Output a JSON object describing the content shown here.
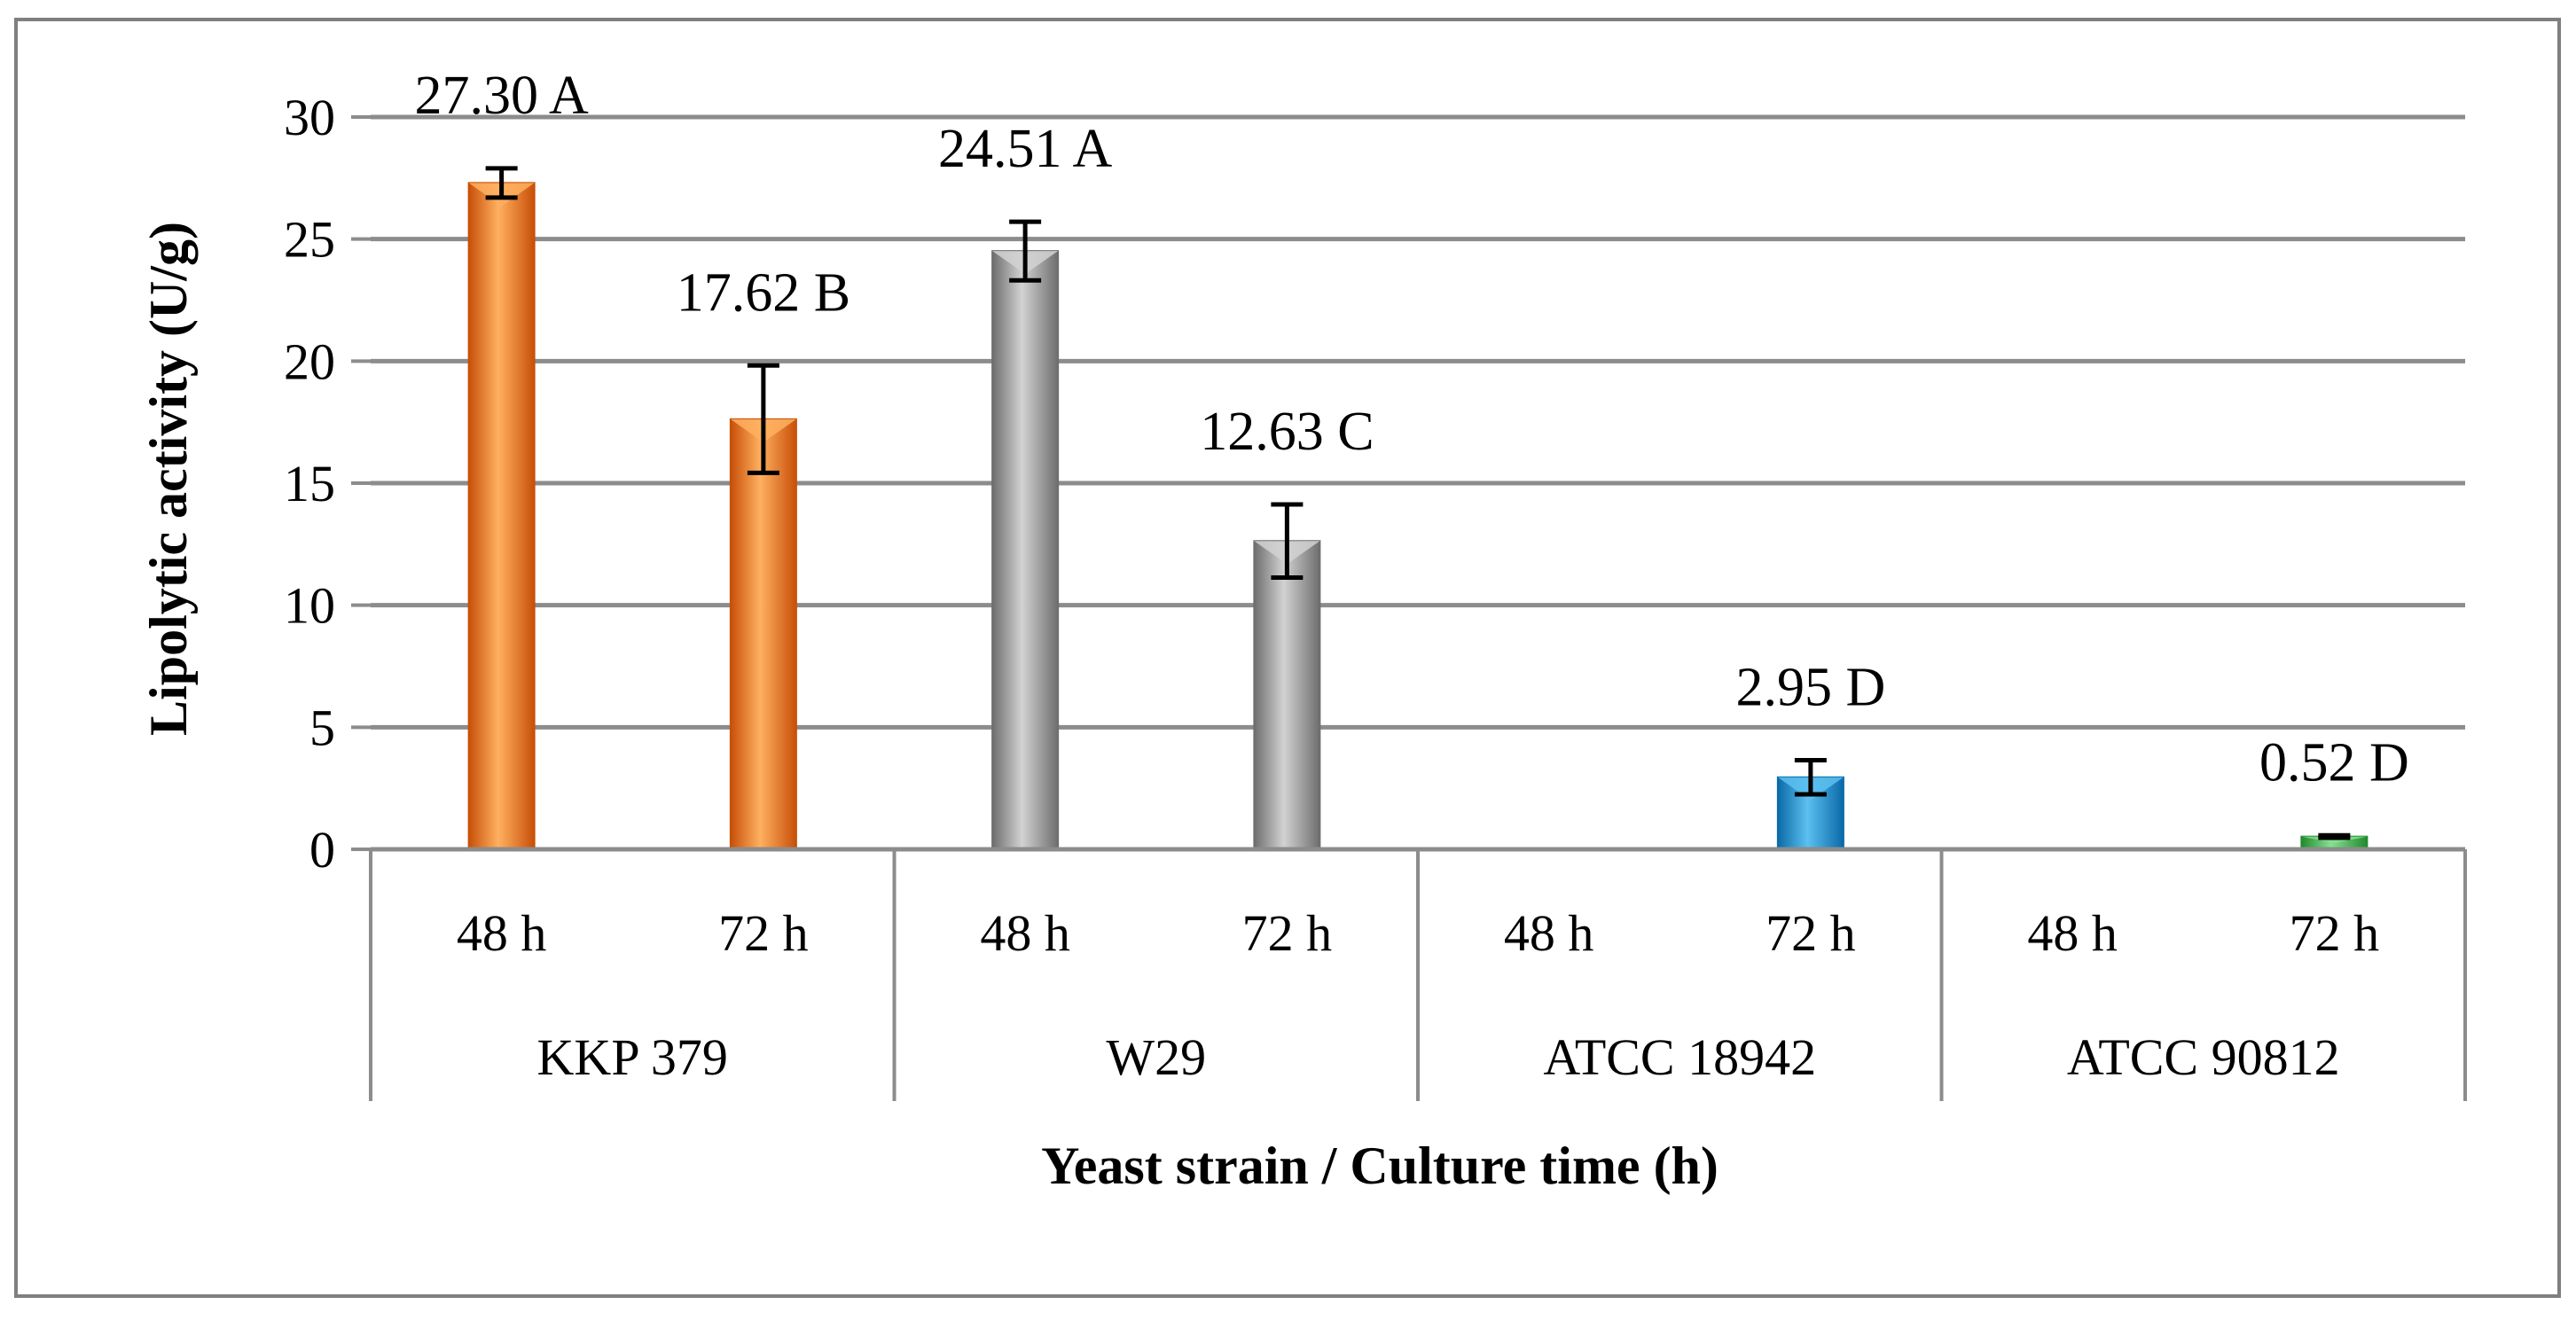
{
  "chart_data": {
    "type": "bar",
    "title": "",
    "ylabel": "Lipolytic activity (U/g)",
    "xlabel": "Yeast strain / Culture time (h)",
    "ylim": [
      0,
      30
    ],
    "yticks": [
      0,
      5,
      10,
      15,
      20,
      25,
      30
    ],
    "grid": true,
    "groups": [
      {
        "name": "KKP 379",
        "color": "#f07818",
        "dark": "#c85008",
        "light": "#ffb060"
      },
      {
        "name": "W29",
        "color": "#9e9e9e",
        "dark": "#6e6e6e",
        "light": "#d2d2d2"
      },
      {
        "name": "ATCC 18942",
        "color": "#1a8fd0",
        "dark": "#0a6aa8",
        "light": "#5cc0f0"
      },
      {
        "name": "ATCC 90812",
        "color": "#3cb44a",
        "dark": "#228a30",
        "light": "#86e090"
      }
    ],
    "categories": [
      "48 h",
      "72 h",
      "48 h",
      "72 h",
      "48 h",
      "72 h",
      "48 h",
      "72 h"
    ],
    "bars": [
      {
        "group": 0,
        "time": "48 h",
        "value": 27.3,
        "error": 0.6,
        "label": "27.30 A"
      },
      {
        "group": 0,
        "time": "72 h",
        "value": 17.62,
        "error": 2.2,
        "label": "17.62 B"
      },
      {
        "group": 1,
        "time": "48 h",
        "value": 24.51,
        "error": 1.2,
        "label": "24.51 A"
      },
      {
        "group": 1,
        "time": "72 h",
        "value": 12.63,
        "error": 1.5,
        "label": "12.63 C"
      },
      {
        "group": 2,
        "time": "48 h",
        "value": null,
        "error": null,
        "label": ""
      },
      {
        "group": 2,
        "time": "72 h",
        "value": 2.95,
        "error": 0.7,
        "label": "2.95 D"
      },
      {
        "group": 3,
        "time": "48 h",
        "value": null,
        "error": null,
        "label": ""
      },
      {
        "group": 3,
        "time": "72 h",
        "value": 0.52,
        "error": 0.05,
        "label": "0.52 D"
      }
    ]
  }
}
